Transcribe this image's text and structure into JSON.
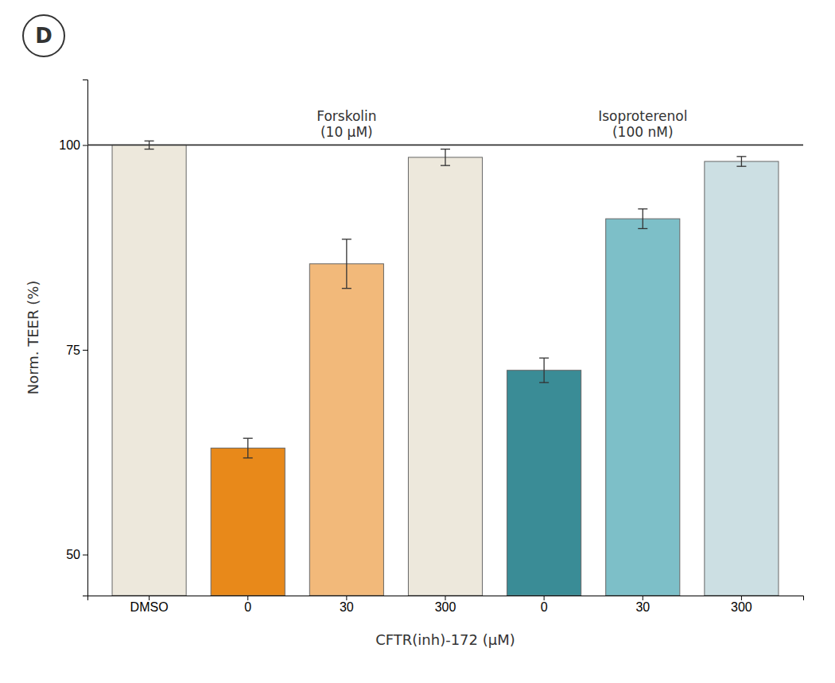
{
  "chart_data": {
    "type": "bar",
    "categories": [
      "DMSO",
      "0",
      "30",
      "300",
      "0",
      "30",
      "300"
    ],
    "values": [
      100.0,
      63.0,
      85.5,
      98.5,
      72.5,
      91.0,
      98.0
    ],
    "errors": [
      0.5,
      1.2,
      3.0,
      1.0,
      1.5,
      1.2,
      0.6
    ],
    "colors": [
      "#EDE8DC",
      "#E8891A",
      "#F2B97A",
      "#EDE8DC",
      "#3A8C96",
      "#7DBFC8",
      "#CCDFE3"
    ],
    "ylabel": "Norm. TEER (%)",
    "xlabel": "CFTR(inh)-172 (μM)",
    "ylim": [
      45,
      108
    ],
    "yticks": [
      50,
      75,
      100
    ],
    "baseline": 100,
    "annotations": [
      "Forskolin\n(10 μM)",
      "Isoproterenol\n(100 nM)"
    ],
    "panel_label": "D",
    "grid": false
  }
}
